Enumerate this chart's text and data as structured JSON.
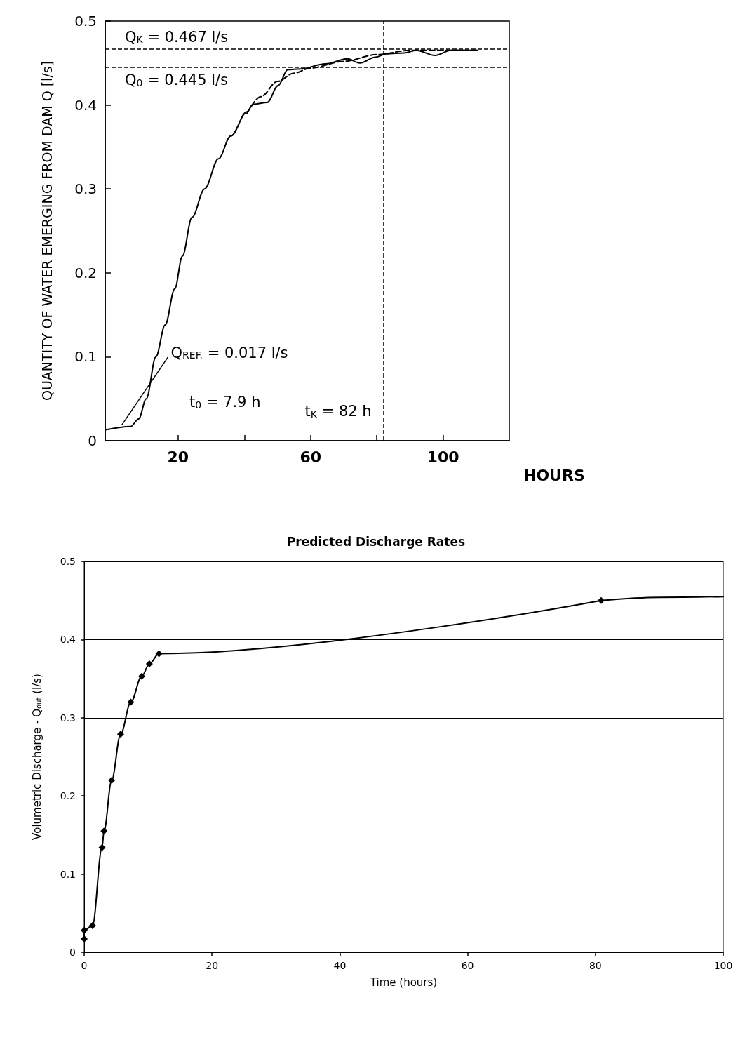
{
  "chart_data": [
    {
      "type": "line",
      "xlabel": "HOURS",
      "ylabel": "QUANTITY OF WATER EMERGING FROM DAM Q [l/s]",
      "xlim": [
        -2,
        120
      ],
      "xticks": [
        20,
        {
          "value": 40,
          "label": null
        },
        60,
        {
          "value": 80,
          "label": null
        },
        100
      ],
      "ylim": [
        0,
        0.5
      ],
      "yticks": [
        0,
        0.1,
        0.2,
        0.3,
        0.4,
        0.5
      ],
      "grid": false,
      "marker": "none",
      "series": [
        {
          "color": "#000000",
          "x": [
            -1.9,
            5.7,
            8.1,
            10.4,
            13.3,
            16.1,
            19,
            21.3,
            24.2,
            28,
            32.2,
            35.9,
            40.8,
            42.7,
            46.9,
            50.2,
            53.1,
            56.9,
            64.5,
            71.1,
            74.9,
            79.6,
            82.9,
            88.2,
            91.9,
            97.6,
            102.4,
            110.4
          ],
          "values": [
            0.013,
            0.017,
            0.026,
            0.05,
            0.1,
            0.138,
            0.181,
            0.22,
            0.266,
            0.3,
            0.336,
            0.363,
            0.392,
            0.401,
            0.403,
            0.423,
            0.442,
            0.443,
            0.449,
            0.455,
            0.45,
            0.457,
            0.461,
            0.462,
            0.465,
            0.459,
            0.465,
            0.465
          ]
        },
        {
          "color": "#000000",
          "line_style": "dashed",
          "x": [
            40.8,
            45,
            50,
            55,
            60,
            70,
            80,
            90,
            110.4
          ],
          "values": [
            0.39,
            0.41,
            0.428,
            0.438,
            0.444,
            0.452,
            0.46,
            0.465,
            0.465
          ]
        }
      ],
      "ref_lines": [
        {
          "axis": "y",
          "value": 0.467,
          "label": "Q$_{K}$ = 0.467 l/s",
          "line_style": "dashed",
          "color": "#000000"
        },
        {
          "axis": "y",
          "value": 0.445,
          "label": "Q$_{0}$ = 0.445 l/s",
          "line_style": "dashed",
          "color": "#000000"
        },
        {
          "axis": "x",
          "value": 82,
          "label": "t$_{K}$ = 82 h",
          "line_style": "dashed",
          "color": "#000000"
        }
      ],
      "annotations": [
        {
          "text": "Q$_{REF.}$ = 0.017 l/s",
          "x": 3,
          "y": 0.017
        },
        "t$_{0}$ = 7.9 h"
      ]
    },
    {
      "type": "line",
      "title": "Predicted Discharge Rates",
      "xlabel": "Time (hours)",
      "ylabel": "Volumetric Discharge - Q$_{out}$ (l/s)",
      "xlim": [
        0,
        100
      ],
      "xticks": [
        0,
        20,
        40,
        60,
        80,
        100
      ],
      "ylim": [
        0,
        0.5
      ],
      "yticks": [
        0,
        0.1,
        0.2,
        0.3,
        0.4,
        0.5
      ],
      "grid": "y",
      "marker": "diamond",
      "series": [
        {
          "color": "#000000",
          "x": [
            0,
            0,
            1.3,
            2.8,
            3.1,
            4.3,
            5.7,
            7.3,
            9.0,
            10.2,
            11.7,
            80.9
          ],
          "values": [
            0.017,
            0.028,
            0.034,
            0.134,
            0.155,
            0.22,
            0.279,
            0.32,
            0.353,
            0.369,
            0.382,
            0.45
          ]
        },
        {
          "color": "#000000",
          "marker": "none",
          "x": [
            80.9,
            90,
            100
          ],
          "values": [
            0.45,
            0.454,
            0.455
          ]
        }
      ]
    }
  ]
}
